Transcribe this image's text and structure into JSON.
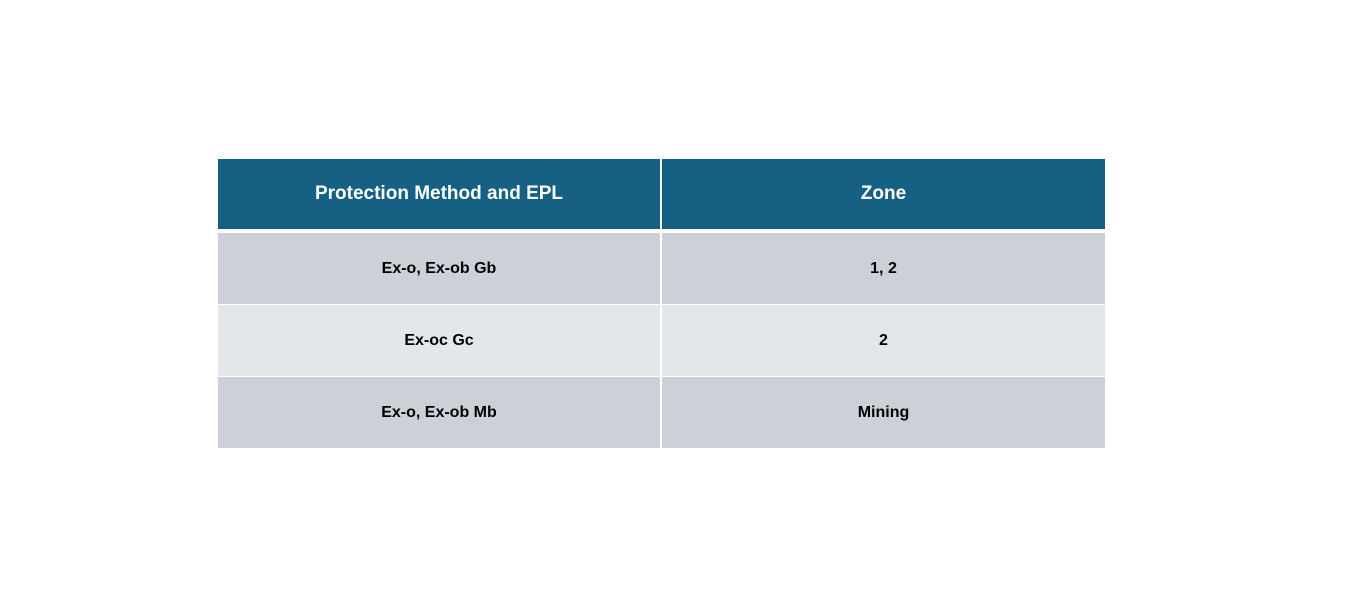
{
  "table": {
    "header": [
      "Protection Method and EPL",
      "Zone"
    ],
    "rows": [
      [
        "Ex-o, Ex-ob Gb",
        "1, 2"
      ],
      [
        "Ex-oc Gc",
        "2"
      ],
      [
        "Ex-o, Ex-ob Mb",
        "Mining"
      ]
    ]
  }
}
